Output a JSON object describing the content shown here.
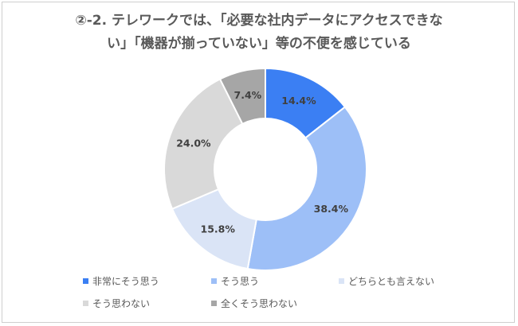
{
  "chart_data": {
    "type": "pie",
    "title_line1": "②-2. テレワークでは、「必要な社内データにアクセスできな",
    "title_line2": "い」「機器が揃っていない」等の不便を感じている",
    "unit": "%",
    "series": [
      {
        "name": "非常にそう思う",
        "value": 14.4,
        "label": "14.4%",
        "color": "#3b7ff3"
      },
      {
        "name": "そう思う",
        "value": 38.4,
        "label": "38.4%",
        "color": "#9dbff7"
      },
      {
        "name": "どちらとも言えない",
        "value": 15.8,
        "label": "15.8%",
        "color": "#dae4f6"
      },
      {
        "name": "そう思わない",
        "value": 24.0,
        "label": "24.0%",
        "color": "#d9d9d9"
      },
      {
        "name": "全くそう思わない",
        "value": 7.4,
        "label": "7.4%",
        "color": "#a6a6a6"
      }
    ],
    "legend_position": "bottom"
  }
}
